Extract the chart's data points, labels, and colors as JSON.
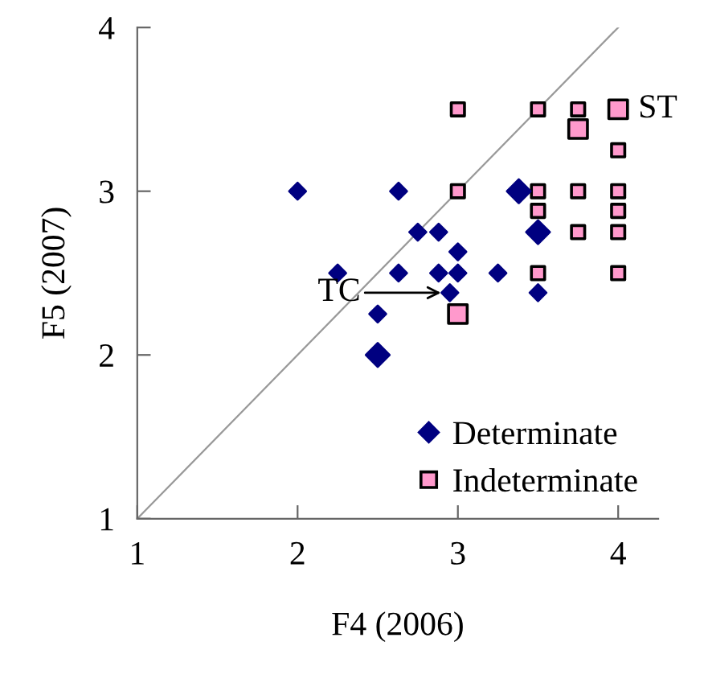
{
  "chart_data": {
    "type": "scatter",
    "xlabel": "F4 (2006)",
    "ylabel": "F5 (2007)",
    "xlim": [
      1,
      4.25
    ],
    "ylim": [
      1,
      4
    ],
    "xticks": [
      1,
      2,
      3,
      4
    ],
    "yticks": [
      1,
      2,
      3,
      4
    ],
    "grid": false,
    "legend": "bottom right",
    "series": [
      {
        "type": "line",
        "color": "#999999",
        "x": [
          1,
          4
        ],
        "values": [
          1,
          4
        ],
        "marker": "none"
      },
      {
        "name": "Determinate",
        "color": "#000080",
        "marker": "diamond",
        "x": [
          2.0,
          2.63,
          3.38,
          2.75,
          2.88,
          3.5,
          3.0,
          2.25,
          2.63,
          2.88,
          3.0,
          3.25,
          2.95,
          3.5,
          2.5,
          2.5
        ],
        "values": [
          3.0,
          3.0,
          3.0,
          2.75,
          2.75,
          2.75,
          2.63,
          2.5,
          2.5,
          2.5,
          2.5,
          2.5,
          2.38,
          2.38,
          2.25,
          2.0
        ],
        "sizes": [
          0.5,
          0.5,
          1,
          0.5,
          0.5,
          1,
          0.5,
          0.5,
          0.5,
          0.5,
          0.5,
          0.5,
          0.5,
          0.5,
          0.5,
          1
        ]
      },
      {
        "name": "Indeterminate",
        "color": "#ff99cc",
        "marker": "square",
        "x": [
          3.0,
          3.5,
          3.75,
          4.0,
          3.75,
          4.0,
          3.0,
          3.5,
          3.75,
          4.0,
          3.5,
          4.0,
          3.75,
          4.0,
          3.5,
          4.0,
          3.0
        ],
        "values": [
          3.5,
          3.5,
          3.5,
          3.5,
          3.38,
          3.25,
          3.0,
          3.0,
          3.0,
          3.0,
          2.88,
          2.88,
          2.75,
          2.75,
          2.5,
          2.5,
          2.25
        ],
        "sizes": [
          0.5,
          0.5,
          0.5,
          1,
          1,
          0.5,
          0.5,
          0.5,
          0.5,
          0.5,
          0.5,
          0.5,
          0.5,
          0.5,
          0.5,
          0.5,
          1
        ]
      }
    ],
    "annotations": [
      {
        "text": "TC",
        "x": 2.95,
        "y": 2.38
      },
      {
        "text": "ST",
        "x": 4.0,
        "y": 3.5
      }
    ]
  }
}
